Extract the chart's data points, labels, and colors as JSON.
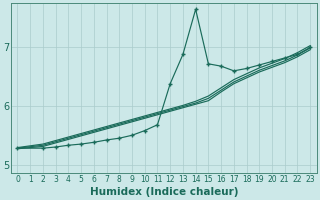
{
  "xlabel": "Humidex (Indice chaleur)",
  "ylabel": "",
  "bg_color": "#cce8e8",
  "grid_color": "#aacccc",
  "line_color": "#1a6b5a",
  "x_values": [
    0,
    1,
    2,
    3,
    4,
    5,
    6,
    7,
    8,
    9,
    10,
    11,
    12,
    13,
    14,
    15,
    16,
    17,
    18,
    19,
    20,
    21,
    22,
    23
  ],
  "line_spike": [
    5.28,
    null,
    5.28,
    5.3,
    5.33,
    5.35,
    5.38,
    5.42,
    5.45,
    5.5,
    5.58,
    5.68,
    6.38,
    6.88,
    7.65,
    6.72,
    6.68,
    6.6,
    6.64,
    6.7,
    6.76,
    6.82,
    6.88,
    7.0
  ],
  "line_reg1": [
    5.27,
    null,
    5.31,
    5.37,
    5.43,
    5.49,
    5.55,
    5.61,
    5.67,
    5.73,
    5.79,
    5.85,
    5.91,
    5.97,
    6.03,
    6.09,
    6.24,
    6.38,
    6.48,
    6.58,
    6.66,
    6.74,
    6.84,
    6.96
  ],
  "line_reg2": [
    5.28,
    null,
    5.33,
    5.39,
    5.45,
    5.51,
    5.57,
    5.63,
    5.69,
    5.75,
    5.81,
    5.87,
    5.93,
    5.99,
    6.05,
    6.13,
    6.27,
    6.41,
    6.51,
    6.61,
    6.69,
    6.77,
    6.87,
    6.99
  ],
  "line_reg3": [
    5.29,
    null,
    5.35,
    5.41,
    5.47,
    5.53,
    5.59,
    5.65,
    5.71,
    5.77,
    5.83,
    5.89,
    5.95,
    6.01,
    6.08,
    6.17,
    6.31,
    6.45,
    6.55,
    6.65,
    6.73,
    6.81,
    6.91,
    7.03
  ],
  "ylim": [
    4.85,
    7.75
  ],
  "yticks": [
    5,
    6,
    7
  ],
  "xlim": [
    -0.5,
    23.5
  ],
  "xtick_fontsize": 5.5,
  "ytick_fontsize": 7,
  "xlabel_fontsize": 7.5
}
